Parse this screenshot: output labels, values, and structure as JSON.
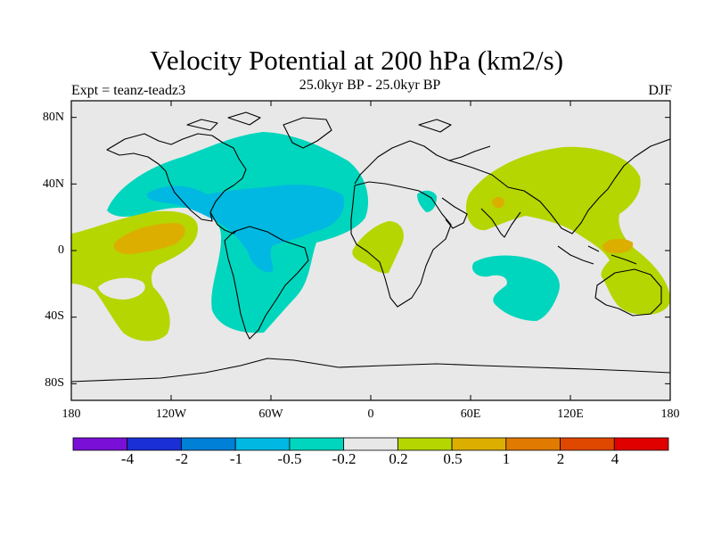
{
  "header": {
    "title": "Velocity Potential at 200 hPa (km2/s)",
    "subtitle": "25.0kyr BP - 25.0kyr BP",
    "experiment": "Expt = teanz-teadz3",
    "season": "DJF"
  },
  "map": {
    "projection": "cylindrical equidistant",
    "lon_range": [
      -180,
      180
    ],
    "lat_range": [
      -90,
      90
    ],
    "background_color": "#e8e8e8",
    "coastline_color": "#000000",
    "lat_tick_labels": [
      "80N",
      "40N",
      "0",
      "40S",
      "80S"
    ],
    "lon_tick_labels": [
      "180",
      "120W",
      "60W",
      "0",
      "60E",
      "120E",
      "180"
    ],
    "field_regions": [
      {
        "name": "americas-atlantic-negative",
        "level": "-0.5 to -0.2",
        "color": "#00d6bd"
      },
      {
        "name": "atlantic-core",
        "level": "-1 to -0.5",
        "color": "#00b8e2"
      },
      {
        "name": "central-pacific-positive",
        "level": "0.2 to 0.5",
        "color": "#b5d600"
      },
      {
        "name": "central-pacific-core",
        "level": "0.5 to 1",
        "color": "#dcae00"
      },
      {
        "name": "africa-positive",
        "level": "0.2 to 0.5",
        "color": "#b5d600"
      },
      {
        "name": "asia-positive",
        "level": "0.2 to 0.5",
        "color": "#b5d600"
      },
      {
        "name": "indian-ocean-negative",
        "level": "-0.5 to -0.2",
        "color": "#00d6bd"
      },
      {
        "name": "red-sea-negative",
        "level": "-0.5 to -0.2",
        "color": "#00d6bd"
      }
    ]
  },
  "colorbar": {
    "colors": [
      "#7a10d8",
      "#1b2fd6",
      "#0080d6",
      "#00b8e2",
      "#00d6bd",
      "#e8e8e8",
      "#b5d600",
      "#dcae00",
      "#e07a00",
      "#e04800",
      "#e00000"
    ],
    "labels": [
      "-4",
      "-2",
      "-1",
      "-0.5",
      "-0.2",
      "0.2",
      "0.5",
      "1",
      "2",
      "4"
    ]
  }
}
